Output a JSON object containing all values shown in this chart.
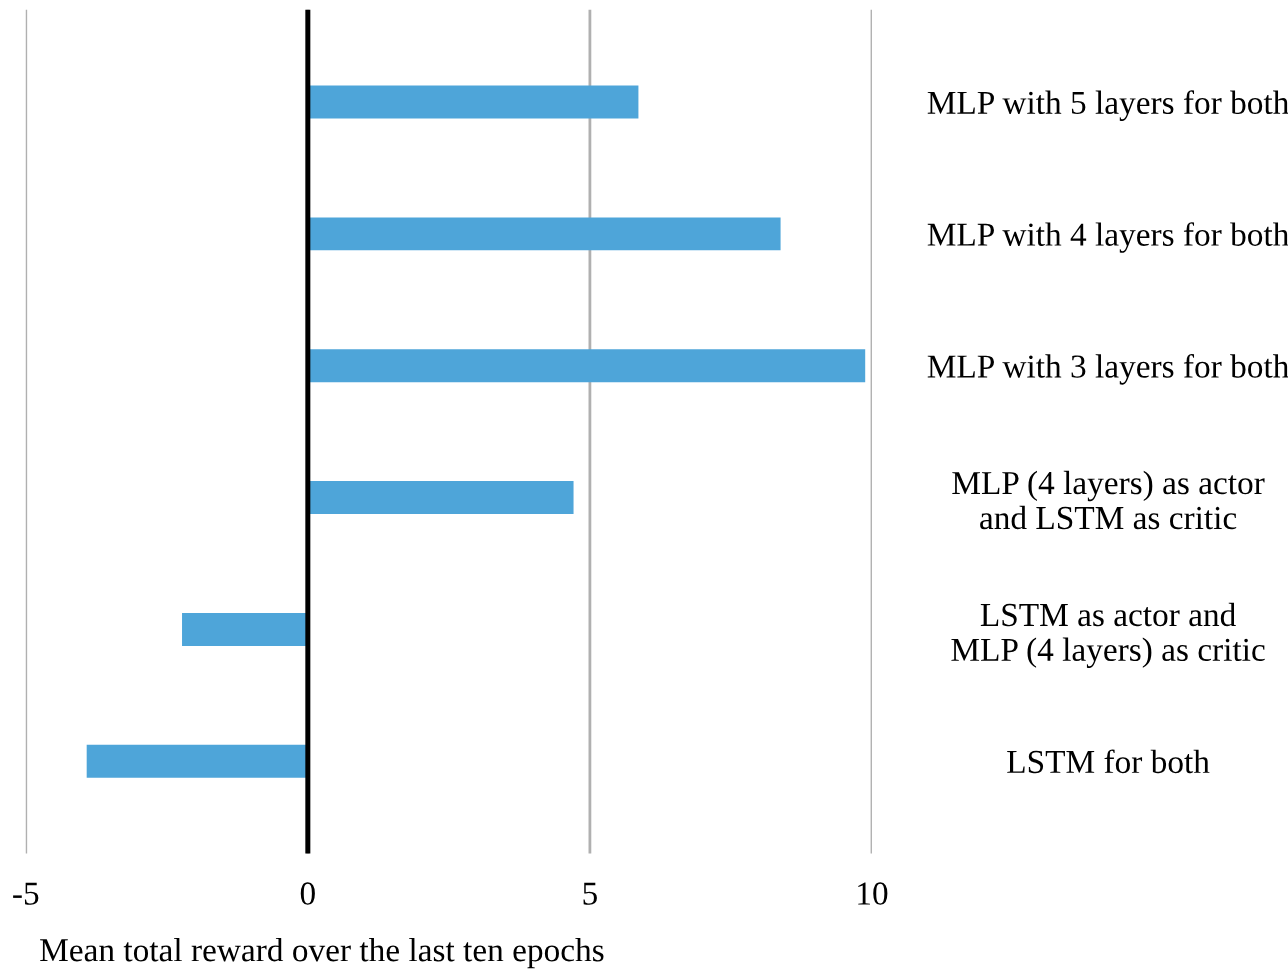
{
  "chart_data": {
    "type": "bar",
    "orientation": "horizontal",
    "xlabel": "Mean total reward over the last ten epochs",
    "categories": [
      "MLP with 5 layers for both",
      "MLP with 4 layers for both",
      "MLP with 3 layers for both",
      "MLP (4 layers) as actor\nand LSTM as critic",
      "LSTM as actor and\nMLP (4 layers) as critic",
      "LSTM for both"
    ],
    "values": [
      5.86,
      8.38,
      9.88,
      4.71,
      -2.23,
      -3.92
    ],
    "color": "#4ea5d9",
    "xlim": [
      -5,
      10
    ],
    "xticks": [
      -5,
      0,
      5,
      10
    ],
    "grid": "x",
    "legend": false
  }
}
